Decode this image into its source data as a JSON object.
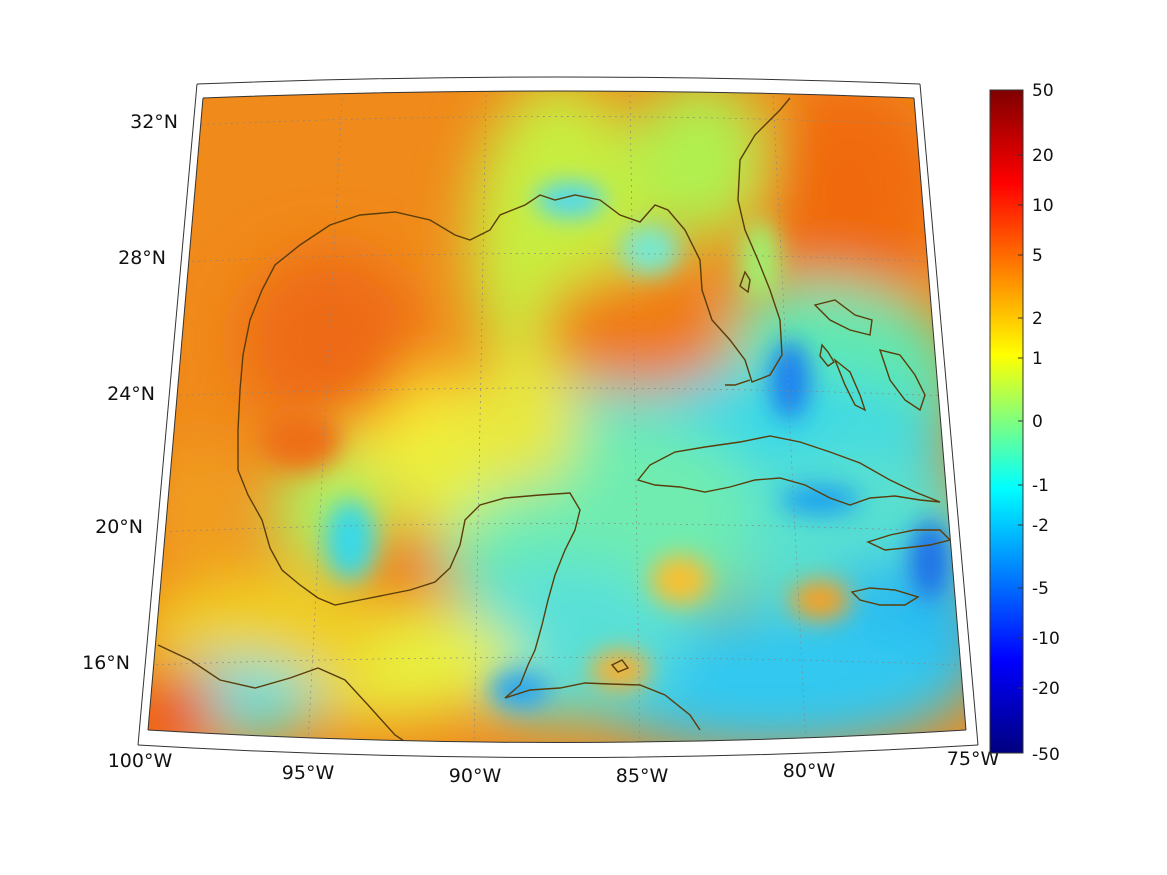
{
  "map": {
    "lon_labels": [
      "100°W",
      "95°W",
      "90°W",
      "85°W",
      "80°W",
      "75°W"
    ],
    "lat_labels": [
      "32°N",
      "28°N",
      "24°N",
      "20°N",
      "16°N"
    ],
    "region": "Gulf of Mexico and Caribbean",
    "coastline_color": "#5a3d0a",
    "grid": true
  },
  "colorbar": {
    "tick_labels": [
      "50",
      "20",
      "10",
      "5",
      "2",
      "1",
      "0",
      "-1",
      "-2",
      "-5",
      "-10",
      "-20",
      "-50"
    ],
    "colormap": "jet",
    "colors": [
      "#7f0000",
      "#ff0000",
      "#ff7f00",
      "#ffff00",
      "#7fff7f",
      "#00ffff",
      "#007fff",
      "#0000ff",
      "#00007f"
    ]
  }
}
